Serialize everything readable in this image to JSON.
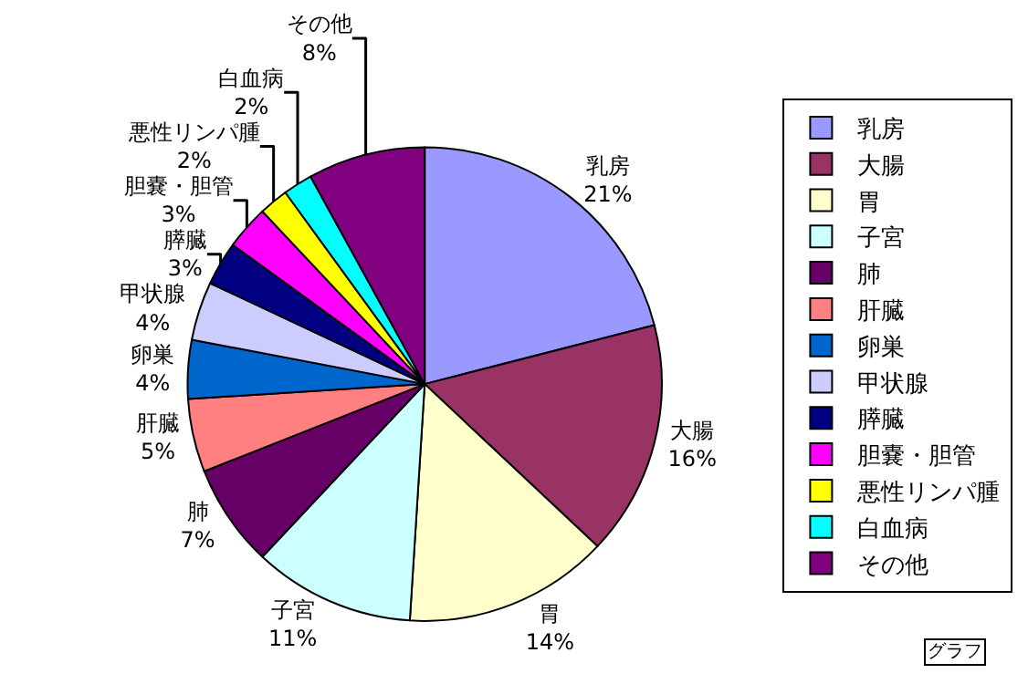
{
  "chart_data": {
    "type": "pie",
    "categories": [
      "乳房",
      "大腸",
      "胃",
      "子宮",
      "肺",
      "肝臓",
      "卵巣",
      "甲状腺",
      "膵臓",
      "胆嚢・胆管",
      "悪性リンパ腫",
      "白血病",
      "その他"
    ],
    "values": [
      21,
      16,
      14,
      11,
      7,
      5,
      4,
      4,
      3,
      3,
      2,
      2,
      8
    ],
    "value_labels": [
      "21%",
      "16%",
      "14%",
      "11%",
      "7%",
      "5%",
      "4%",
      "4%",
      "3%",
      "3%",
      "2%",
      "2%",
      "8%"
    ],
    "colors": [
      "#9999ff",
      "#993366",
      "#ffffcc",
      "#ccffff",
      "#660066",
      "#ff8080",
      "#0066cc",
      "#ccccff",
      "#000080",
      "#ff00ff",
      "#ffff00",
      "#00ffff",
      "#800080"
    ],
    "legend": "right",
    "annotations": [
      "グラフ"
    ]
  }
}
